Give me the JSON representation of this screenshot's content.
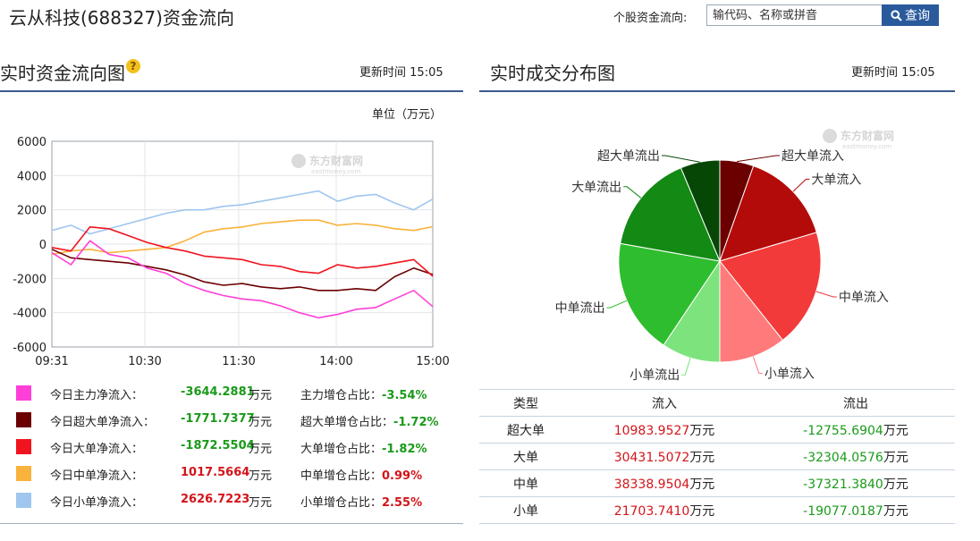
{
  "page": {
    "title": "云从科技(688327)资金流向",
    "search_label": "个股资金流向:",
    "search_placeholder": "输代码、名称或拼音",
    "search_button": "查询"
  },
  "left_panel": {
    "title": "实时资金流向图",
    "update_label": "更新时间",
    "update_time": "15:05",
    "unit_label": "单位（万元）",
    "watermark": "东方财富网",
    "watermark_sub": "eastmoney.com"
  },
  "right_panel": {
    "title": "实时成交分布图",
    "update_label": "更新时间",
    "update_time": "15:05",
    "watermark": "东方财富网",
    "watermark_sub": "eastmoney.com"
  },
  "legend": [
    {
      "label": "今日主力净流入：",
      "value": "-3644.2881",
      "unit": "万元",
      "ratio_label": "主力增仓占比：",
      "ratio": "-3.54%",
      "color": "#ff3fd8",
      "sign": "neg"
    },
    {
      "label": "今日超大单净流入：",
      "value": "-1771.7377",
      "unit": "万元",
      "ratio_label": "超大单增仓占比：",
      "ratio": "-1.72%",
      "color": "#6b0000",
      "sign": "neg"
    },
    {
      "label": "今日大单净流入：",
      "value": "-1872.5504",
      "unit": "万元",
      "ratio_label": "大单增仓占比：",
      "ratio": "-1.82%",
      "color": "#f0141e",
      "sign": "neg"
    },
    {
      "label": "今日中单净流入：",
      "value": "1017.5664",
      "unit": "万元",
      "ratio_label": "中单增仓占比：",
      "ratio": "0.99%",
      "color": "#f9b23b",
      "sign": "pos"
    },
    {
      "label": "今日小单净流入：",
      "value": "2626.7223",
      "unit": "万元",
      "ratio_label": "小单增仓占比：",
      "ratio": "2.55%",
      "color": "#9fc6ee",
      "sign": "pos"
    }
  ],
  "table": {
    "headers": [
      "类型",
      "流入",
      "流出"
    ],
    "rows": [
      {
        "type": "超大单",
        "in": "10983.9527",
        "out": "-12755.6904",
        "unit": "万元"
      },
      {
        "type": "大单",
        "in": "30431.5072",
        "out": "-32304.0576",
        "unit": "万元"
      },
      {
        "type": "中单",
        "in": "38338.9504",
        "out": "-37321.3840",
        "unit": "万元"
      },
      {
        "type": "小单",
        "in": "21703.7410",
        "out": "-19077.0187",
        "unit": "万元"
      }
    ]
  },
  "chart_data": [
    {
      "type": "line",
      "ylabel": "单位（万元）",
      "ylim": [
        -6000,
        6000
      ],
      "yticks": [
        "6000",
        "4000",
        "2000",
        "0",
        "-2000",
        "-4000",
        "-6000"
      ],
      "xticks": [
        "09:31",
        "10:30",
        "11:30",
        "14:00",
        "15:00"
      ],
      "x": [
        "09:31",
        "09:43",
        "09:55",
        "10:07",
        "10:19",
        "10:30",
        "10:42",
        "10:54",
        "11:06",
        "11:18",
        "11:30",
        "13:12",
        "13:24",
        "13:36",
        "13:48",
        "14:00",
        "14:12",
        "14:24",
        "14:36",
        "14:48",
        "15:00"
      ],
      "grid": true,
      "series": [
        {
          "name": "主力净流入",
          "color": "#ff3fd8",
          "values": [
            -500,
            -1200,
            200,
            -600,
            -800,
            -1400,
            -1700,
            -2300,
            -2700,
            -3000,
            -3200,
            -3300,
            -3600,
            -4000,
            -4300,
            -4100,
            -3800,
            -3700,
            -3200,
            -2700,
            -3644
          ]
        },
        {
          "name": "超大单净流入",
          "color": "#6b0000",
          "values": [
            -300,
            -800,
            -900,
            -1000,
            -1100,
            -1300,
            -1500,
            -1800,
            -2200,
            -2400,
            -2300,
            -2500,
            -2600,
            -2500,
            -2700,
            -2700,
            -2600,
            -2700,
            -1900,
            -1400,
            -1772
          ]
        },
        {
          "name": "大单净流入",
          "color": "#f0141e",
          "values": [
            -200,
            -400,
            1000,
            900,
            500,
            100,
            -200,
            -400,
            -700,
            -800,
            -900,
            -1200,
            -1300,
            -1600,
            -1700,
            -1200,
            -1400,
            -1300,
            -1100,
            -900,
            -1873
          ]
        },
        {
          "name": "中单净流入",
          "color": "#f9b23b",
          "values": [
            -600,
            -400,
            -300,
            -500,
            -400,
            -300,
            -200,
            200,
            700,
            900,
            1000,
            1200,
            1300,
            1400,
            1400,
            1100,
            1200,
            1100,
            900,
            800,
            1018
          ]
        },
        {
          "name": "小单净流入",
          "color": "#9fc6ee",
          "values": [
            800,
            1100,
            600,
            900,
            1200,
            1500,
            1800,
            2000,
            2000,
            2200,
            2300,
            2500,
            2700,
            2900,
            3100,
            2500,
            2800,
            2900,
            2400,
            2000,
            2627
          ]
        }
      ]
    },
    {
      "type": "pie",
      "slices": [
        {
          "label": "超大单流入",
          "value": 10983.9527,
          "color": "#6b0000"
        },
        {
          "label": "大单流入",
          "value": 30431.5072,
          "color": "#b30a0a"
        },
        {
          "label": "中单流入",
          "value": 38338.9504,
          "color": "#f23a3a"
        },
        {
          "label": "小单流入",
          "value": 21703.741,
          "color": "#ff7b7b"
        },
        {
          "label": "小单流出",
          "value": 19077.0187,
          "color": "#7de37d"
        },
        {
          "label": "中单流出",
          "value": 37321.384,
          "color": "#2ebd2e"
        },
        {
          "label": "大单流出",
          "value": 32304.0576,
          "color": "#138a13"
        },
        {
          "label": "超大单流出",
          "value": 12755.6904,
          "color": "#064706"
        }
      ]
    }
  ]
}
